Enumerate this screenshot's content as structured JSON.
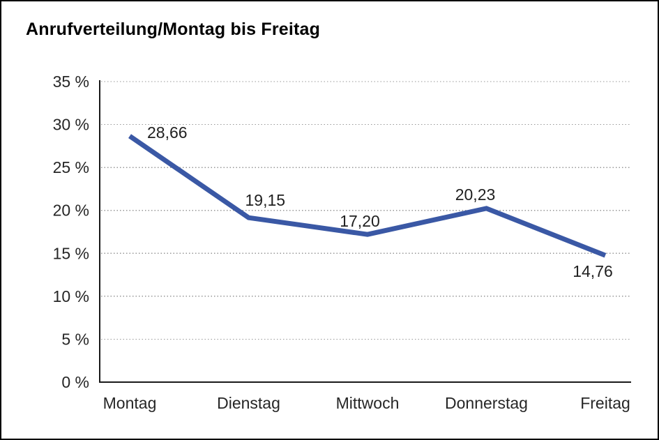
{
  "window": {
    "background_color": "#ffffff",
    "border_color": "#000000"
  },
  "chart_data": {
    "type": "line",
    "title": "Anrufverteilung/Montag bis Freitag",
    "categories": [
      "Montag",
      "Dienstag",
      "Mittwoch",
      "Donnerstag",
      "Freitag"
    ],
    "series": [
      {
        "name": "Anrufverteilung",
        "values": [
          28.66,
          19.15,
          17.2,
          20.23,
          14.76
        ],
        "point_labels": [
          "28,66",
          "19,15",
          "17,20",
          "20,23",
          "14,76"
        ],
        "color": "#3a58a5"
      }
    ],
    "xlabel": "",
    "ylabel": "",
    "ylim": [
      0,
      35
    ],
    "ytick_step": 5,
    "ytick_labels": [
      "0 %",
      "5 %",
      "10 %",
      "15 %",
      "20 %",
      "25 %",
      "30 %",
      "35 %"
    ],
    "grid": "horizontal dotted",
    "legend": "none",
    "text_color": "#262626",
    "grid_color": "#979797",
    "axis_color": "#1a1a1a"
  }
}
